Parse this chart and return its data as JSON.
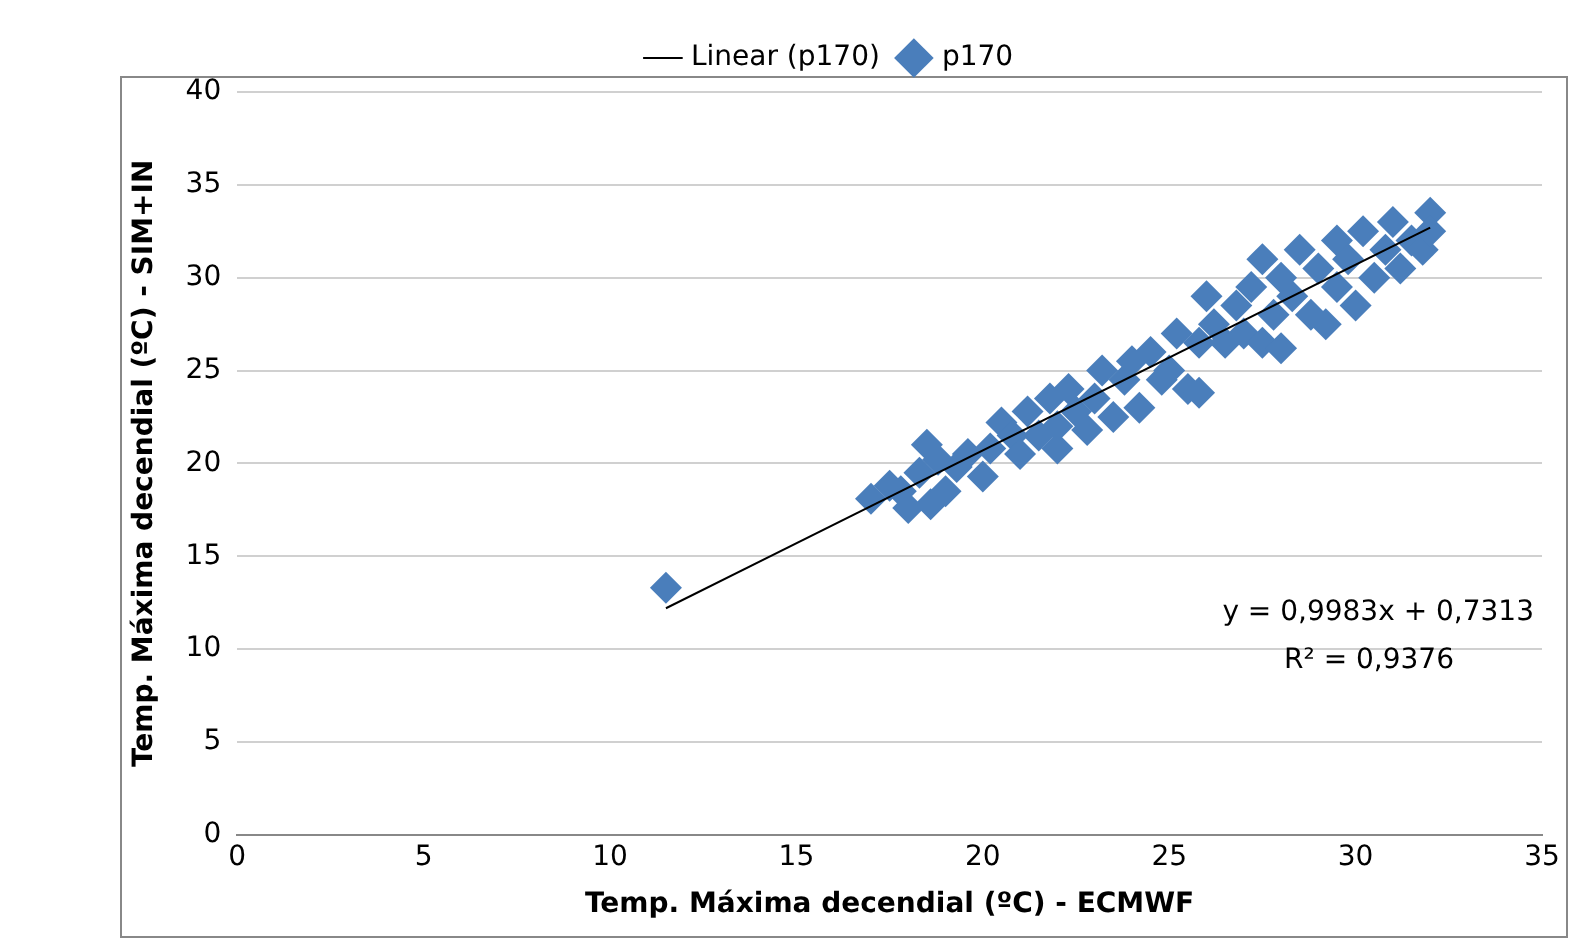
{
  "chart_data": {
    "type": "scatter",
    "xlabel": "Temp. Máxima decendial (ºC) - ECMWF",
    "ylabel": "Temp. Máxima decendial (ºC) - SIM+IN",
    "xlim": [
      0,
      35
    ],
    "xticks": [
      0,
      5,
      10,
      15,
      20,
      25,
      30,
      35
    ],
    "ylim": [
      0,
      40
    ],
    "yticks": [
      0,
      5,
      10,
      15,
      20,
      25,
      30,
      35,
      40
    ],
    "grid": "y",
    "legend": "top",
    "annotations": [
      "y = 0,9983x + 0,7313",
      "R² = 0,9376"
    ],
    "series": [
      {
        "name": "p170",
        "marker": "diamond",
        "color": "#4a7ebb",
        "x": [
          11.5,
          17,
          17.5,
          17.8,
          18,
          18.3,
          18.5,
          18.6,
          18.8,
          19,
          19.3,
          19.6,
          20,
          20.2,
          20.5,
          20.8,
          21,
          21.2,
          21.5,
          21.8,
          22,
          22,
          22.3,
          22.5,
          22.8,
          23,
          23.2,
          23.5,
          23.8,
          24,
          24.2,
          24.5,
          24.8,
          25,
          25.2,
          25.5,
          25.8,
          25.8,
          26,
          26.2,
          26.5,
          26.8,
          27,
          27.2,
          27.5,
          27.5,
          27.8,
          28,
          28,
          28.3,
          28.5,
          28.8,
          29,
          29.2,
          29.5,
          29.5,
          29.8,
          30,
          30.2,
          30.5,
          30.8,
          31,
          31.2,
          31.5,
          31.8,
          32,
          32
        ],
        "values": [
          13.3,
          18.1,
          18.8,
          18.5,
          17.6,
          19.5,
          21,
          17.8,
          20.2,
          18.5,
          19.8,
          20.5,
          19.3,
          20.8,
          22.2,
          21.5,
          20.5,
          22.8,
          21.5,
          23.5,
          22,
          20.8,
          24,
          22.8,
          21.8,
          23.5,
          25,
          22.5,
          24.5,
          25.5,
          23,
          26,
          24.5,
          25,
          27,
          24,
          26.5,
          23.8,
          29,
          27.5,
          26.5,
          28.5,
          27,
          29.5,
          31,
          26.5,
          28,
          30,
          26.2,
          29,
          31.5,
          28,
          30.5,
          27.5,
          32,
          29.5,
          31,
          28.5,
          32.5,
          30,
          31.5,
          33,
          30.5,
          32,
          31.5,
          33.5,
          32.5
        ]
      },
      {
        "name": "Linear (p170)",
        "type": "line",
        "color": "#000000",
        "marker": "none",
        "x": [
          11.5,
          32
        ],
        "values": [
          12.2,
          32.7
        ]
      }
    ]
  }
}
